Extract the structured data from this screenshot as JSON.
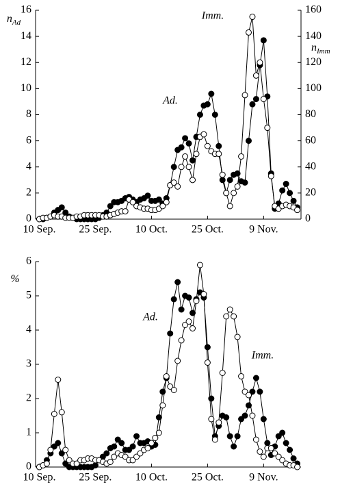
{
  "chart_data": [
    {
      "type": "line",
      "ylabel": "n",
      "ylabel_sub": "Ad",
      "y2label": "n",
      "y2label_sub": "Imm",
      "annotations": [
        "Imm.",
        "Ad."
      ],
      "x": [
        0,
        1,
        2,
        3,
        4,
        5,
        6,
        7,
        8,
        9,
        10,
        11,
        12,
        13,
        14,
        15,
        16,
        17,
        18,
        19,
        20,
        21,
        22,
        23,
        24,
        25,
        26,
        27,
        28,
        29,
        30,
        31,
        32,
        33,
        34,
        35,
        36,
        37,
        38,
        39,
        40,
        41,
        42,
        43,
        44,
        45,
        46,
        47,
        48,
        49,
        50,
        51,
        52,
        53,
        54,
        55,
        56,
        57,
        58,
        59,
        60,
        61,
        62,
        63,
        64,
        65,
        66,
        67,
        68,
        69
      ],
      "xlim": [
        -1,
        70
      ],
      "xticks": [
        {
          "value": 0,
          "label": "10 Sep."
        },
        {
          "value": 15,
          "label": "25 Sep."
        },
        {
          "value": 30,
          "label": "10 Oct."
        },
        {
          "value": 45,
          "label": "25 Oct."
        },
        {
          "value": 60,
          "label": "9 Nov."
        }
      ],
      "ylim": [
        0,
        16
      ],
      "yticks": [
        0,
        2,
        4,
        6,
        8,
        10,
        12,
        14,
        16
      ],
      "y2lim": [
        0,
        160
      ],
      "y2ticks": [
        0,
        20,
        40,
        60,
        80,
        100,
        120,
        140,
        160
      ],
      "series": [
        {
          "name": "Ad.",
          "color": "#000000",
          "marker": "filled",
          "values": [
            0,
            0,
            0.1,
            0.2,
            0.5,
            0.7,
            0.9,
            0.5,
            0.2,
            0.1,
            0,
            0,
            0,
            0,
            0,
            0,
            0.1,
            0.3,
            0.5,
            1.0,
            1.3,
            1.3,
            1.4,
            1.6,
            1.7,
            1.5,
            1.3,
            1.5,
            1.6,
            1.8,
            1.4,
            1.4,
            1.5,
            1.2,
            1.6,
            2.6,
            4.0,
            5.3,
            5.5,
            6.2,
            5.8,
            4.5,
            6.3,
            8.0,
            8.7,
            8.8,
            9.6,
            8.0,
            5.6,
            3.0,
            2.0,
            3.0,
            3.4,
            3.5,
            2.9,
            2.8,
            6.0,
            8.8,
            9.2,
            11.8,
            13.7,
            9.4,
            3.5,
            0.8,
            1.2,
            2.2,
            2.7,
            2.0,
            1.4,
            0.9
          ]
        },
        {
          "name": "Imm.",
          "color": "#000000",
          "marker": "open",
          "axis": "y2",
          "values": [
            0,
            1,
            1,
            2,
            3,
            2,
            2,
            1,
            1,
            1,
            2,
            2,
            3,
            3,
            3,
            3,
            3,
            2,
            2,
            3,
            4,
            5,
            6,
            6,
            15,
            13,
            10,
            9,
            8,
            8,
            7,
            7,
            8,
            10,
            13,
            26,
            28,
            25,
            40,
            48,
            40,
            30,
            50,
            63,
            65,
            56,
            52,
            50,
            50,
            34,
            20,
            10,
            20,
            25,
            48,
            95,
            143,
            155,
            110,
            120,
            92,
            70,
            33,
            10,
            8,
            10,
            11,
            10,
            9,
            7
          ]
        }
      ]
    },
    {
      "type": "line",
      "ylabel": "%",
      "annotations": [
        "Ad.",
        "Imm."
      ],
      "x": [
        0,
        1,
        2,
        3,
        4,
        5,
        6,
        7,
        8,
        9,
        10,
        11,
        12,
        13,
        14,
        15,
        16,
        17,
        18,
        19,
        20,
        21,
        22,
        23,
        24,
        25,
        26,
        27,
        28,
        29,
        30,
        31,
        32,
        33,
        34,
        35,
        36,
        37,
        38,
        39,
        40,
        41,
        42,
        43,
        44,
        45,
        46,
        47,
        48,
        49,
        50,
        51,
        52,
        53,
        54,
        55,
        56,
        57,
        58,
        59,
        60,
        61,
        62,
        63,
        64,
        65,
        66,
        67,
        68,
        69
      ],
      "xlim": [
        -1,
        70
      ],
      "xticks": [
        {
          "value": 0,
          "label": "10 Sep."
        },
        {
          "value": 15,
          "label": "25 Sep."
        },
        {
          "value": 30,
          "label": "10 Oct."
        },
        {
          "value": 45,
          "label": "25 Oct."
        },
        {
          "value": 60,
          "label": "9 Nov."
        }
      ],
      "ylim": [
        0,
        6
      ],
      "yticks": [
        0,
        1,
        2,
        3,
        4,
        5,
        6
      ],
      "series": [
        {
          "name": "Ad.",
          "color": "#000000",
          "marker": "filled",
          "values": [
            0,
            0.05,
            0.2,
            0.4,
            0.6,
            0.7,
            0.4,
            0.1,
            0,
            0,
            0,
            0,
            0,
            0,
            0,
            0.05,
            0.2,
            0.3,
            0.4,
            0.55,
            0.6,
            0.8,
            0.7,
            0.5,
            0.5,
            0.6,
            0.9,
            0.7,
            0.7,
            0.75,
            0.6,
            0.65,
            1.45,
            2.2,
            2.6,
            3.9,
            4.9,
            5.4,
            4.6,
            5.0,
            4.95,
            4.5,
            4.9,
            5.1,
            4.95,
            3.5,
            2.0,
            0.9,
            1.2,
            1.5,
            1.45,
            0.9,
            0.6,
            0.9,
            1.4,
            1.5,
            1.8,
            2.2,
            2.6,
            2.2,
            1.4,
            0.7,
            0.35,
            0.6,
            0.9,
            1.0,
            0.7,
            0.5,
            0.25,
            0.1
          ]
        },
        {
          "name": "Imm.",
          "color": "#000000",
          "marker": "open",
          "values": [
            0,
            0.05,
            0.1,
            0.5,
            1.55,
            2.55,
            1.6,
            0.5,
            0.2,
            0.1,
            0.1,
            0.2,
            0.2,
            0.25,
            0.25,
            0.2,
            0.2,
            0.15,
            0.1,
            0.15,
            0.3,
            0.4,
            0.35,
            0.3,
            0.2,
            0.2,
            0.3,
            0.4,
            0.5,
            0.55,
            0.7,
            0.85,
            1.0,
            1.8,
            2.65,
            2.35,
            2.25,
            3.1,
            3.7,
            4.15,
            4.25,
            4.05,
            4.85,
            5.9,
            5.05,
            3.05,
            1.4,
            0.8,
            1.3,
            2.75,
            4.4,
            4.6,
            4.4,
            3.8,
            2.65,
            2.2,
            2.1,
            1.5,
            0.8,
            0.45,
            0.3,
            0.55,
            0.55,
            0.4,
            0.3,
            0.2,
            0.1,
            0.05,
            0.05,
            0
          ]
        }
      ]
    }
  ]
}
